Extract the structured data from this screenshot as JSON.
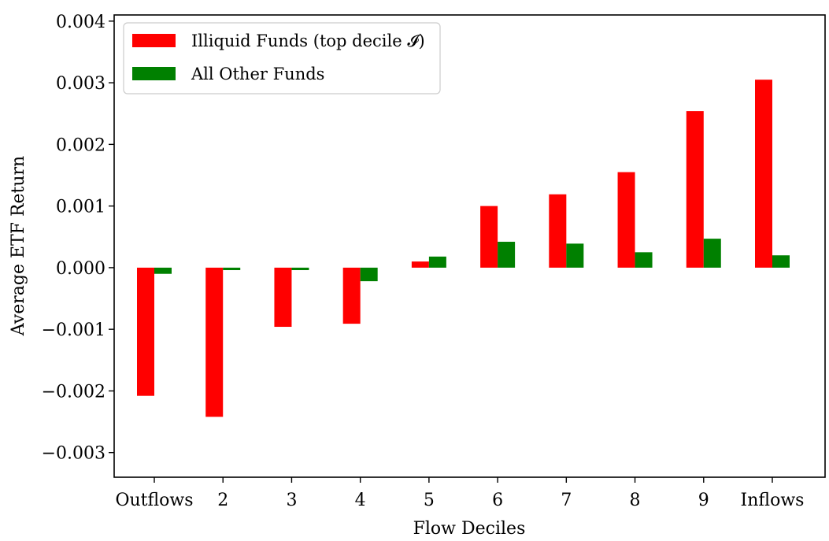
{
  "chart_data": {
    "type": "bar",
    "xlabel": "Flow Deciles",
    "ylabel": "Average ETF Return",
    "categories": [
      "Outflows",
      "2",
      "3",
      "4",
      "5",
      "6",
      "7",
      "8",
      "9",
      "Inflows"
    ],
    "series": [
      {
        "name": "Illiquid Funds (top decile 𝓘)",
        "color": "#ff0000",
        "values": [
          -0.00208,
          -0.00242,
          -0.00096,
          -0.00091,
          0.0001,
          0.001,
          0.00119,
          0.00155,
          0.00254,
          0.00305
        ]
      },
      {
        "name": "All Other Funds",
        "color": "#008000",
        "values": [
          -0.0001,
          -4e-05,
          -4e-05,
          -0.00022,
          0.00018,
          0.00042,
          0.00039,
          0.00025,
          0.00047,
          0.0002
        ]
      }
    ],
    "ylim": [
      -0.0034,
      0.0041
    ],
    "yticks": [
      -0.003,
      -0.002,
      -0.001,
      0.0,
      0.001,
      0.002,
      0.003,
      0.004
    ],
    "ytick_labels": [
      "−0.003",
      "−0.002",
      "−0.001",
      "0.000",
      "0.001",
      "0.002",
      "0.003",
      "0.004"
    ],
    "grid": false,
    "legend_position": "top-left"
  }
}
